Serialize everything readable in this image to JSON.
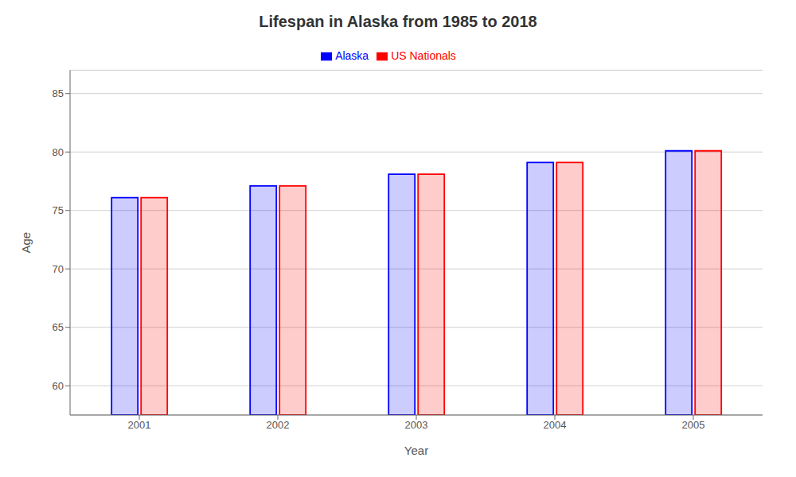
{
  "chart_data": {
    "type": "bar",
    "title": "Lifespan in Alaska from 1985 to 2018",
    "x_label": "Year",
    "y_label": "Age",
    "categories": [
      "2001",
      "2002",
      "2003",
      "2004",
      "2005"
    ],
    "series": [
      {
        "name": "Alaska",
        "color": "#0000ff",
        "values": [
          76.1,
          77.1,
          78.1,
          79.1,
          80.1
        ]
      },
      {
        "name": "US Nationals",
        "color": "#ff0000",
        "values": [
          76.1,
          77.1,
          78.1,
          79.1,
          80.1
        ]
      }
    ],
    "ylim": [
      57.5,
      87
    ],
    "yticks": [
      60,
      65,
      70,
      75,
      80,
      85
    ],
    "grid": true,
    "legend": "top"
  }
}
